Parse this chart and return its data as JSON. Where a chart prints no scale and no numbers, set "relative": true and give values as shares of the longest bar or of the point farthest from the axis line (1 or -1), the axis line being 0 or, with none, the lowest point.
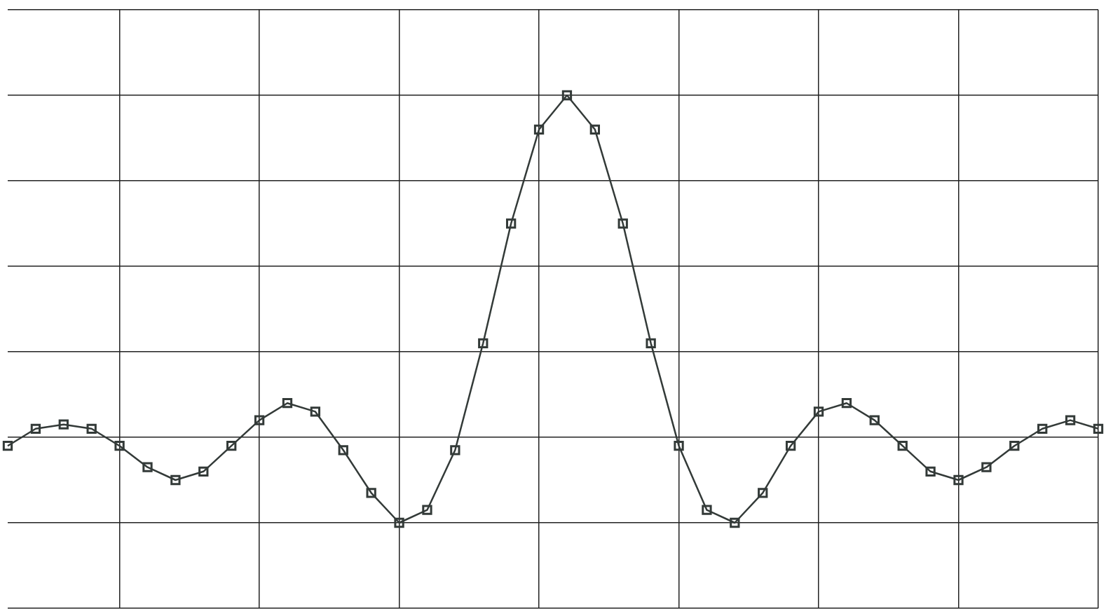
{
  "chart_data": {
    "type": "line",
    "relative": true,
    "categories": [
      null,
      null,
      null,
      null,
      null,
      null,
      null,
      null,
      null,
      null,
      null,
      null,
      null,
      null,
      null,
      null,
      null,
      null,
      null,
      null,
      null,
      null,
      null,
      null,
      null,
      null,
      null,
      null,
      null,
      null,
      null,
      null,
      null,
      null,
      null,
      null,
      null,
      null,
      null,
      null
    ],
    "series": [
      {
        "color": "#333a38",
        "values": [
          0.18,
          0.22,
          0.23,
          0.22,
          0.18,
          0.13,
          0.1,
          0.12,
          0.18,
          0.24,
          0.28,
          0.26,
          0.17,
          0.07,
          0,
          0.03,
          0.17,
          0.42,
          0.7,
          0.92,
          1,
          0.92,
          0.7,
          0.42,
          0.18,
          0.03,
          0,
          0.07,
          0.18,
          0.26,
          0.28,
          0.24,
          0.18,
          0.12,
          0.1,
          0.13,
          0.18,
          0.22,
          0.24,
          0.22
        ]
      }
    ],
    "grid": true,
    "legend": false,
    "marker": "square",
    "line_style": "solid"
  }
}
